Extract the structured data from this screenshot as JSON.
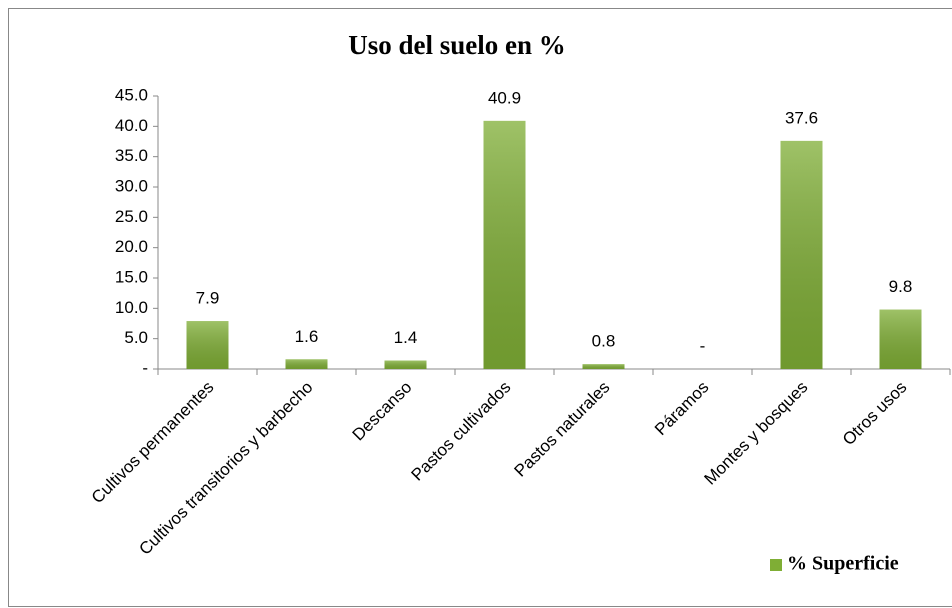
{
  "chart_data": {
    "type": "bar",
    "title": "Uso del suelo en %",
    "categories": [
      "Cultivos permanentes",
      "Cultivos transitorios y barbecho",
      "Descanso",
      "Pastos cultivados",
      "Pastos naturales",
      "Páramos",
      "Montes y bosques",
      "Otros usos"
    ],
    "series": [
      {
        "name": "% Superficie",
        "color": "#7fae35",
        "values": [
          7.9,
          1.6,
          1.4,
          40.9,
          0.8,
          0,
          37.6,
          9.8
        ],
        "value_labels": [
          "7.9",
          "1.6",
          "1.4",
          "40.9",
          "0.8",
          "-",
          "37.6",
          "9.8"
        ]
      }
    ],
    "ylim": [
      0,
      45
    ],
    "yticks": [
      {
        "value": 0,
        "label": "-"
      },
      {
        "value": 5,
        "label": "5.0"
      },
      {
        "value": 10,
        "label": "10.0"
      },
      {
        "value": 15,
        "label": "15.0"
      },
      {
        "value": 20,
        "label": "20.0"
      },
      {
        "value": 25,
        "label": "25.0"
      },
      {
        "value": 30,
        "label": "30.0"
      },
      {
        "value": 35,
        "label": "35.0"
      },
      {
        "value": 40,
        "label": "40.0"
      },
      {
        "value": 45,
        "label": "45.0"
      }
    ],
    "grid": false,
    "legend": "bottom-right"
  }
}
